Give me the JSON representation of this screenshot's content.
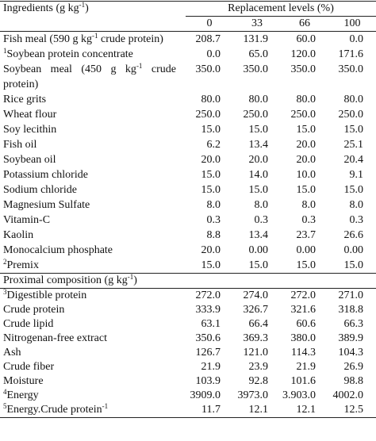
{
  "header": {
    "label": [
      {
        "text": "Ingredients (g kg"
      },
      {
        "sup": "-1"
      },
      {
        "text": ")"
      }
    ],
    "group": "Replacement levels (%)",
    "levels": [
      "0",
      "33",
      "66",
      "100"
    ]
  },
  "ingredients": [
    {
      "label": [
        {
          "text": "Fish meal (590 g kg"
        },
        {
          "sup": "-1"
        },
        {
          "text": " crude protein)"
        }
      ],
      "values": [
        "208.7",
        "131.9",
        "60.0",
        "0.0"
      ]
    },
    {
      "label": [
        {
          "sup": "1"
        },
        {
          "text": "Soybean protein concentrate"
        }
      ],
      "values": [
        "0.0",
        "65.0",
        "120.0",
        "171.6"
      ]
    },
    {
      "label": [
        {
          "text": "Soybean meal (450 g kg"
        },
        {
          "sup": "-1"
        },
        {
          "text": " crude protein)"
        }
      ],
      "values": [
        "350.0",
        "350.0",
        "350.0",
        "350.0"
      ]
    },
    {
      "label": [
        {
          "text": "Rice grits"
        }
      ],
      "values": [
        "80.0",
        "80.0",
        "80.0",
        "80.0"
      ]
    },
    {
      "label": [
        {
          "text": "Wheat flour"
        }
      ],
      "values": [
        "250.0",
        "250.0",
        "250.0",
        "250.0"
      ]
    },
    {
      "label": [
        {
          "text": "Soy lecithin"
        }
      ],
      "values": [
        "15.0",
        "15.0",
        "15.0",
        "15.0"
      ]
    },
    {
      "label": [
        {
          "text": "Fish oil"
        }
      ],
      "values": [
        "6.2",
        "13.4",
        "20.0",
        "25.1"
      ]
    },
    {
      "label": [
        {
          "text": "Soybean oil"
        }
      ],
      "values": [
        "20.0",
        "20.0",
        "20.0",
        "20.4"
      ]
    },
    {
      "label": [
        {
          "text": "Potassium chloride"
        }
      ],
      "values": [
        "15.0",
        "14.0",
        "10.0",
        "9.1"
      ]
    },
    {
      "label": [
        {
          "text": "Sodium chloride"
        }
      ],
      "values": [
        "15.0",
        "15.0",
        "15.0",
        "15.0"
      ]
    },
    {
      "label": [
        {
          "text": "Magnesium Sulfate"
        }
      ],
      "values": [
        "8.0",
        "8.0",
        "8.0",
        "8.0"
      ]
    },
    {
      "label": [
        {
          "text": "Vitamin-C"
        }
      ],
      "values": [
        "0.3",
        "0.3",
        "0.3",
        "0.3"
      ]
    },
    {
      "label": [
        {
          "text": "Kaolin"
        }
      ],
      "values": [
        "8.8",
        "13.4",
        "23.7",
        "26.6"
      ]
    },
    {
      "label": [
        {
          "text": "Monocalcium phosphate"
        }
      ],
      "values": [
        "20.0",
        "0.00",
        "0.00",
        "0.00"
      ]
    },
    {
      "label": [
        {
          "sup": "2"
        },
        {
          "text": "Premix"
        }
      ],
      "values": [
        "15.0",
        "15.0",
        "15.0",
        "15.0"
      ]
    }
  ],
  "section": [
    {
      "text": "Proximal composition (g kg"
    },
    {
      "sup": "-1"
    },
    {
      "text": ")"
    }
  ],
  "composition": [
    {
      "label": [
        {
          "sup": "3"
        },
        {
          "text": "Digestible protein"
        }
      ],
      "values": [
        "272.0",
        "274.0",
        "272.0",
        "271.0"
      ]
    },
    {
      "label": [
        {
          "text": "Crude protein"
        }
      ],
      "values": [
        "333.9",
        "326.7",
        "321.6",
        "318.8"
      ]
    },
    {
      "label": [
        {
          "text": "Crude lipid"
        }
      ],
      "values": [
        "63.1",
        "66.4",
        "60.6",
        "66.3"
      ]
    },
    {
      "label": [
        {
          "text": "Nitrogenan-free extract"
        }
      ],
      "values": [
        "350.6",
        "369.3",
        "380.0",
        "389.9"
      ]
    },
    {
      "label": [
        {
          "text": "Ash"
        }
      ],
      "values": [
        "126.7",
        "121.0",
        "114.3",
        "104.3"
      ]
    },
    {
      "label": [
        {
          "text": "Crude fiber"
        }
      ],
      "values": [
        "21.9",
        "23.9",
        "21.9",
        "26.9"
      ]
    },
    {
      "label": [
        {
          "text": "Moisture"
        }
      ],
      "values": [
        "103.9",
        "92.8",
        "101.6",
        "98.8"
      ]
    },
    {
      "label": [
        {
          "sup": "4"
        },
        {
          "text": "Energy"
        }
      ],
      "values": [
        "3909.0",
        "3973.0",
        "3.903.0",
        "4002.0"
      ]
    },
    {
      "label": [
        {
          "sup": "5"
        },
        {
          "text": "Energy.Crude protein"
        },
        {
          "sup": "-1"
        }
      ],
      "values": [
        "11.7",
        "12.1",
        "12.1",
        "12.5"
      ]
    }
  ]
}
